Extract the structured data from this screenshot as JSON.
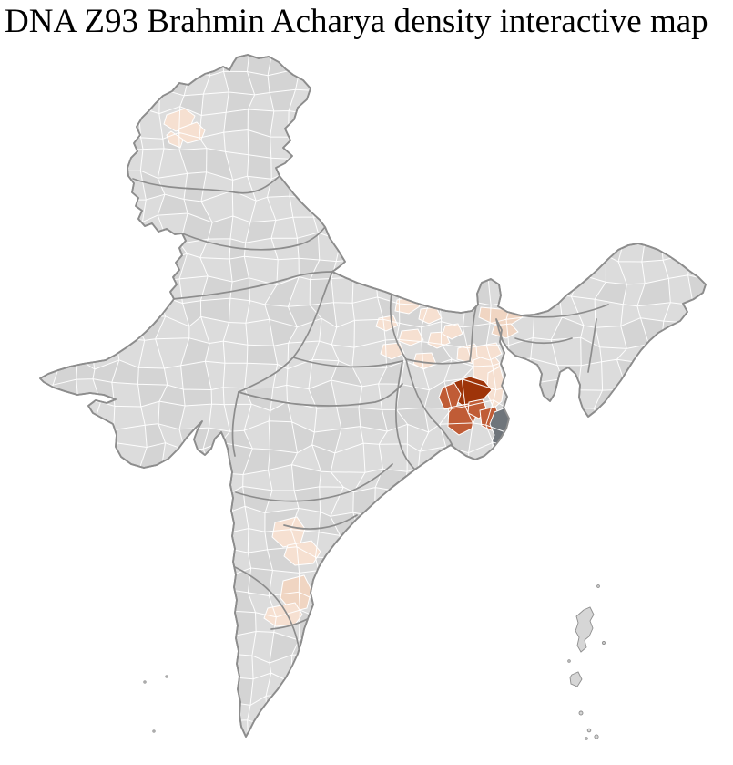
{
  "title": "DNA Z93 Brahmin Acharya density interactive map",
  "map": {
    "name": "india-district-density-choropleth",
    "colors": {
      "background": "#ffffff",
      "district_base": "#dcdcdc",
      "district_border": "#ffffff",
      "district_shade": "rgba(100,100,100,0.055)",
      "state_border": "#8d8d8d",
      "outline": "#8d8d8d",
      "island_fill": "#d6d6d6",
      "density_low": "#f6e0d1",
      "density_low_deep": "#f0d5c2",
      "density_medium": "#c05c36",
      "density_high": "#9e3409",
      "delta_no_data": "#6f757b"
    },
    "regions": [
      {
        "id": "kashmir-valley-a",
        "level": "low"
      },
      {
        "id": "kashmir-valley-b",
        "level": "low"
      },
      {
        "id": "kashmir-valley-c",
        "level": "low"
      },
      {
        "id": "bihar-a",
        "level": "low"
      },
      {
        "id": "bihar-b",
        "level": "low"
      },
      {
        "id": "bihar-c",
        "level": "low"
      },
      {
        "id": "bihar-d",
        "level": "low"
      },
      {
        "id": "bihar-e",
        "level": "low"
      },
      {
        "id": "bihar-f",
        "level": "low"
      },
      {
        "id": "bihar-g",
        "level": "low"
      },
      {
        "id": "bihar-h",
        "level": "low"
      },
      {
        "id": "north-bengal-a",
        "level": "low_deep"
      },
      {
        "id": "north-bengal-b",
        "level": "low_deep"
      },
      {
        "id": "malda",
        "level": "low"
      },
      {
        "id": "bengal-fringe-a",
        "level": "low"
      },
      {
        "id": "bengal-fringe-b",
        "level": "low"
      },
      {
        "id": "bengal-fringe-c",
        "level": "low"
      },
      {
        "id": "bengal-core",
        "level": "high"
      },
      {
        "id": "bengal-medium-a",
        "level": "medium"
      },
      {
        "id": "bengal-medium-b",
        "level": "medium"
      },
      {
        "id": "bengal-medium-c",
        "level": "medium"
      },
      {
        "id": "bengal-medium-d",
        "level": "medium"
      },
      {
        "id": "sundarbans-delta",
        "level": "no_data_dark"
      },
      {
        "id": "andhra-coast-a",
        "level": "low"
      },
      {
        "id": "andhra-coast-b",
        "level": "low"
      },
      {
        "id": "nellore",
        "level": "low_deep"
      },
      {
        "id": "chittoor",
        "level": "low"
      }
    ]
  }
}
